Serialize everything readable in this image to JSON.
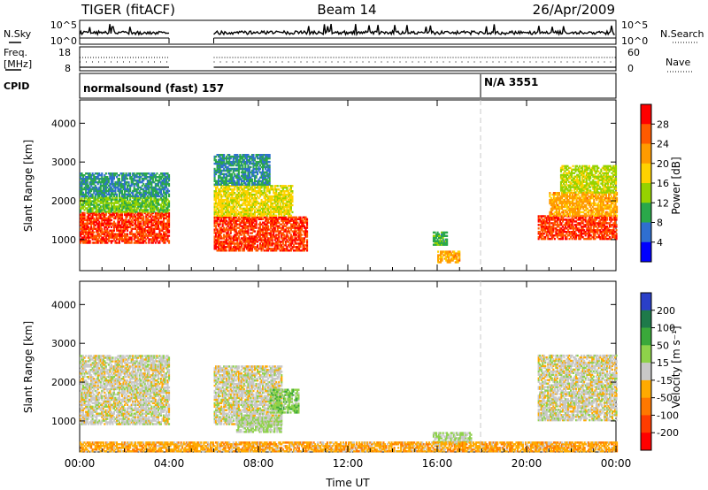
{
  "header": {
    "radar": "TIGER (fitACF)",
    "beam": "Beam 14",
    "date": "26/Apr/2009"
  },
  "strips": {
    "nsky": {
      "label": "N.Sky",
      "ticks": [
        "10^5",
        "10^0"
      ],
      "right_label": "N.Search",
      "right_ticks": [
        "10^5",
        "10^0"
      ]
    },
    "freq": {
      "label_top": "Freq.",
      "label_bottom": "[MHz]",
      "ticks": [
        "18",
        "8"
      ],
      "right_label": "Nave",
      "right_ticks": [
        "60",
        "0"
      ]
    },
    "cpid": {
      "label": "CPID",
      "segments": [
        {
          "text": "normalsound (fast) 157",
          "start": 0,
          "end": 18
        },
        {
          "text": "N/A 3551",
          "start": 18,
          "end": 24
        }
      ]
    }
  },
  "panels": {
    "power": {
      "ylabel": "Slant Range [km]",
      "yticks": [
        1000,
        2000,
        3000,
        4000
      ],
      "colorbar_label": "Power [dB]",
      "colorbar_ticks": [
        "28",
        "24",
        "20",
        "16",
        "12",
        "8",
        "4"
      ],
      "colorbar_colors": [
        "#ff0000",
        "#ff5a00",
        "#ff9b00",
        "#ffd200",
        "#96d200",
        "#2aa84a",
        "#2f6fd0",
        "#0000ff"
      ]
    },
    "velocity": {
      "ylabel": "Slant Range [km]",
      "yticks": [
        1000,
        2000,
        3000,
        4000
      ],
      "colorbar_label": "Velocity [m s⁻¹]",
      "colorbar_ticks": [
        "200",
        "100",
        "50",
        "15",
        "-15",
        "-50",
        "-100",
        "-200"
      ],
      "colorbar_colors": [
        "#2a3fc8",
        "#1e7a4a",
        "#3aa83a",
        "#8ed24a",
        "#c8c8c8",
        "#ffaa00",
        "#ff7800",
        "#ff3c00",
        "#ff0000"
      ]
    }
  },
  "xaxis": {
    "label": "Time UT",
    "ticks": [
      "00:00",
      "04:00",
      "08:00",
      "12:00",
      "16:00",
      "20:00",
      "00:00"
    ]
  },
  "chart_data": [
    {
      "type": "heatmap",
      "title": "Power",
      "xlabel": "Time UT",
      "ylabel": "Slant Range [km]",
      "xlim": [
        0,
        24
      ],
      "ylim": [
        200,
        4600
      ],
      "colorbar_range": [
        0,
        30
      ],
      "data_gaps": [
        [
          4.0,
          6.0
        ]
      ],
      "echo_regions": [
        {
          "t": [
            0.0,
            4.0
          ],
          "range": [
            900,
            1700
          ],
          "value": 26
        },
        {
          "t": [
            0.0,
            4.0
          ],
          "range": [
            1700,
            2100
          ],
          "value": 12
        },
        {
          "t": [
            0.0,
            4.0
          ],
          "range": [
            2100,
            2700
          ],
          "value": 8
        },
        {
          "t": [
            6.0,
            10.2
          ],
          "range": [
            700,
            1600
          ],
          "value": 26
        },
        {
          "t": [
            6.0,
            9.5
          ],
          "range": [
            1600,
            2400
          ],
          "value": 16
        },
        {
          "t": [
            6.0,
            8.5
          ],
          "range": [
            2400,
            3200
          ],
          "value": 8
        },
        {
          "t": [
            15.8,
            16.4
          ],
          "range": [
            850,
            1200
          ],
          "value": 10
        },
        {
          "t": [
            16.0,
            17.0
          ],
          "range": [
            400,
            700
          ],
          "value": 20
        },
        {
          "t": [
            20.5,
            24.0
          ],
          "range": [
            1000,
            1600
          ],
          "value": 26
        },
        {
          "t": [
            21.0,
            24.0
          ],
          "range": [
            1600,
            2200
          ],
          "value": 20
        },
        {
          "t": [
            21.5,
            24.0
          ],
          "range": [
            2200,
            2900
          ],
          "value": 14
        }
      ]
    },
    {
      "type": "heatmap",
      "title": "Velocity",
      "xlabel": "Time UT",
      "ylabel": "Slant Range [km]",
      "xlim": [
        0,
        24
      ],
      "ylim": [
        200,
        4600
      ],
      "colorbar_range": [
        -250,
        250
      ],
      "data_gaps": [
        [
          4.0,
          6.0
        ]
      ],
      "echo_regions": [
        {
          "t": [
            0.0,
            4.0
          ],
          "range": [
            900,
            2700
          ],
          "value": 0
        },
        {
          "t": [
            6.0,
            9.0
          ],
          "range": [
            900,
            2400
          ],
          "value": 0
        },
        {
          "t": [
            8.5,
            9.8
          ],
          "range": [
            1200,
            1800
          ],
          "value": 60
        },
        {
          "t": [
            7.0,
            9.0
          ],
          "range": [
            700,
            1100
          ],
          "value": 30
        },
        {
          "t": [
            15.8,
            17.5
          ],
          "range": [
            400,
            700
          ],
          "value": 30
        },
        {
          "t": [
            20.5,
            24.0
          ],
          "range": [
            1000,
            2700
          ],
          "value": 0
        },
        {
          "t": [
            0.0,
            24.0
          ],
          "range": [
            200,
            450
          ],
          "value": -60
        }
      ]
    }
  ]
}
